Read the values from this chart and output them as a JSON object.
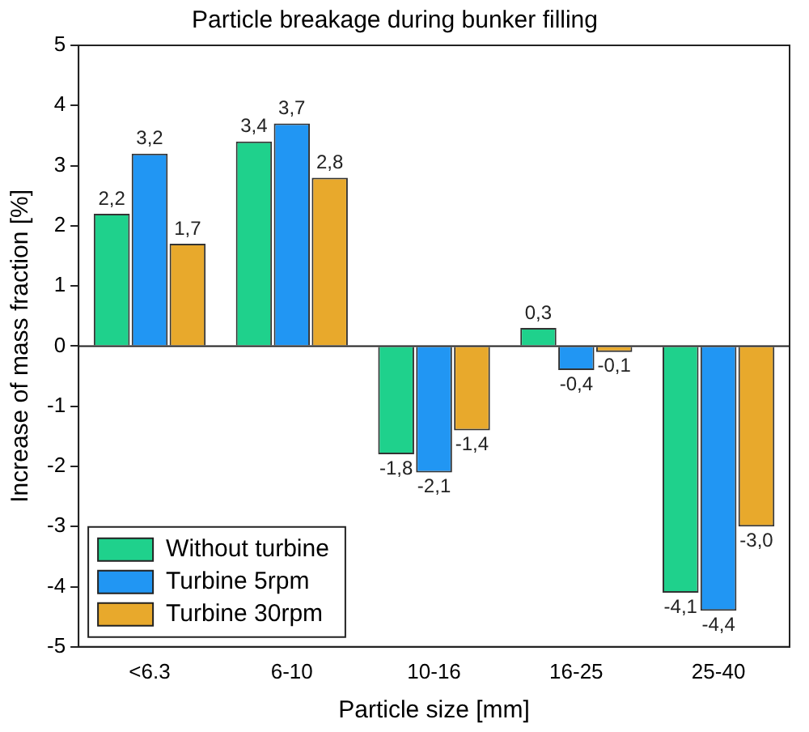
{
  "chart_data": {
    "type": "bar",
    "title": "Particle breakage during bunker filling",
    "xlabel": "Particle size [mm]",
    "ylabel": "Increase of mass fraction [%]",
    "categories": [
      "<6.3",
      "6-10",
      "10-16",
      "16-25",
      "25-40"
    ],
    "series": [
      {
        "name": "Without turbine",
        "color": "#1fd18c",
        "values": [
          2.2,
          3.4,
          -1.8,
          0.3,
          -4.1
        ],
        "value_labels": [
          "2,2",
          "3,4",
          "-1,8",
          "0,3",
          "-4,1"
        ]
      },
      {
        "name": "Turbine 5rpm",
        "color": "#2196f3",
        "values": [
          3.2,
          3.7,
          -2.1,
          -0.4,
          -4.4
        ],
        "value_labels": [
          "3,2",
          "3,7",
          "-2,1",
          "-0,4",
          "-4,4"
        ]
      },
      {
        "name": "Turbine 30rpm",
        "color": "#e8a92c",
        "values": [
          1.7,
          2.8,
          -1.4,
          -0.1,
          -3.0
        ],
        "value_labels": [
          "1,7",
          "2,8",
          "-1,4",
          "-0,1",
          "-3,0"
        ]
      }
    ],
    "ylim": [
      -5,
      5
    ],
    "yticks": [
      -5,
      -4,
      -3,
      -2,
      -1,
      0,
      1,
      2,
      3,
      4,
      5
    ],
    "grid": false,
    "legend": "bottom left",
    "ref_lines": [
      {
        "axis": "y",
        "value": 0,
        "color": "#222222"
      }
    ]
  }
}
